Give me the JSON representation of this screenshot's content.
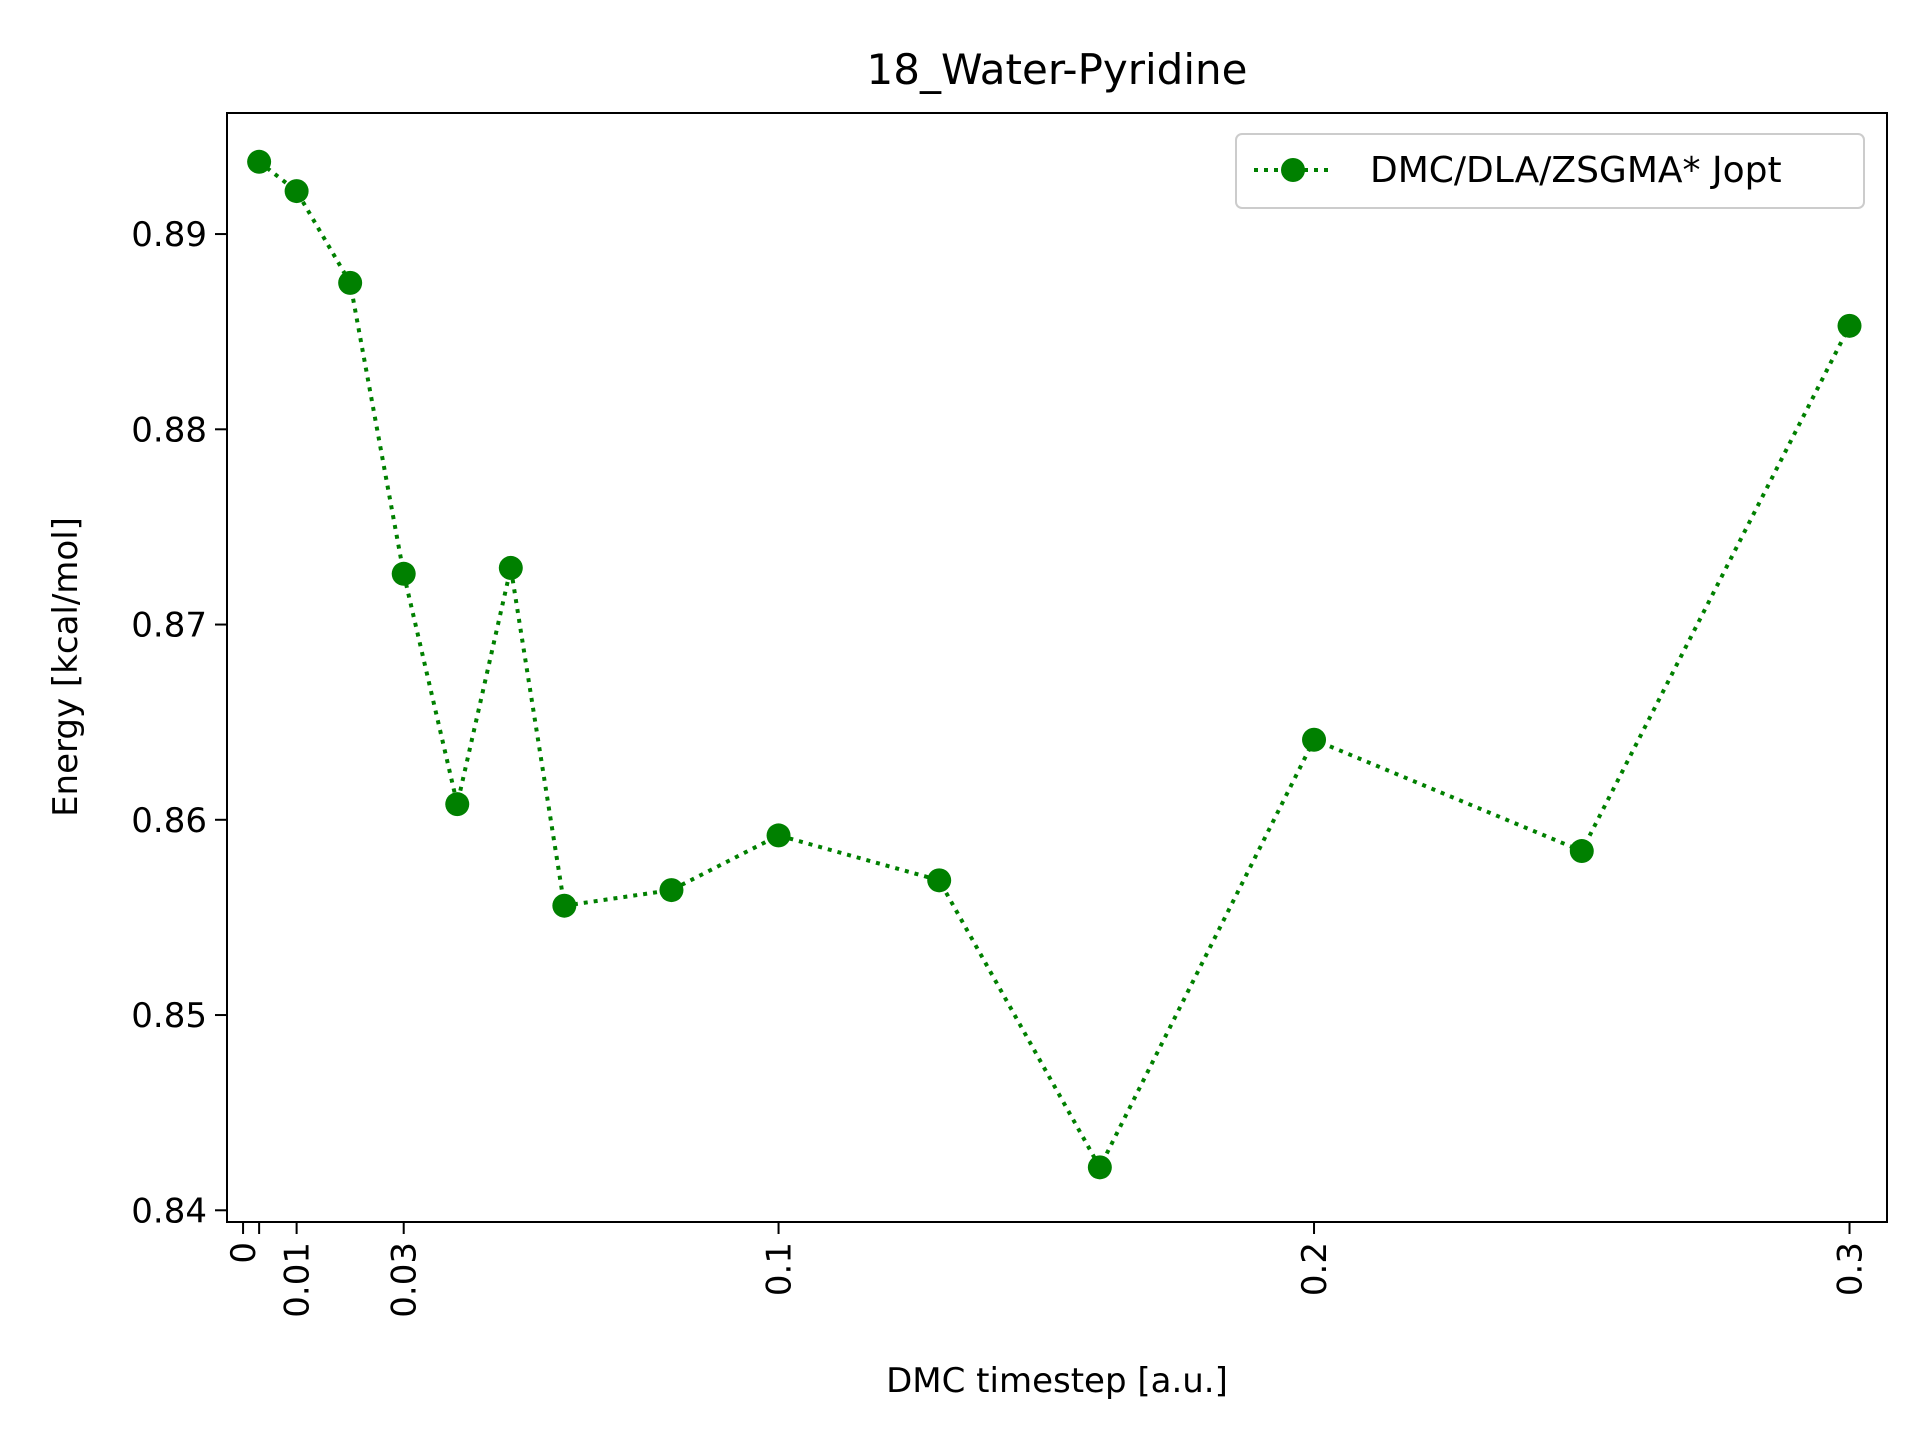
{
  "chart_data": {
    "type": "line",
    "title": "18_Water-Pyridine",
    "xlabel": "DMC timestep [a.u.]",
    "ylabel": "Energy [kcal/mol]",
    "xlim": [
      -0.003,
      0.307
    ],
    "ylim": [
      0.8394,
      0.8962
    ],
    "x_ticks": [
      {
        "value": 0,
        "label": "0"
      },
      {
        "value": 0.003,
        "label": ""
      },
      {
        "value": 0.01,
        "label": "0.01"
      },
      {
        "value": 0.03,
        "label": "0.03"
      },
      {
        "value": 0.1,
        "label": "0.1"
      },
      {
        "value": 0.2,
        "label": "0.2"
      },
      {
        "value": 0.3,
        "label": "0.3"
      }
    ],
    "y_ticks": [
      {
        "value": 0.84,
        "label": "0.84"
      },
      {
        "value": 0.85,
        "label": "0.85"
      },
      {
        "value": 0.86,
        "label": "0.86"
      },
      {
        "value": 0.87,
        "label": "0.87"
      },
      {
        "value": 0.88,
        "label": "0.88"
      },
      {
        "value": 0.89,
        "label": "0.89"
      }
    ],
    "grid": false,
    "legend_position": "top-right",
    "series": [
      {
        "name": "DMC/DLA/ZSGMA* Jopt",
        "color": "#008000",
        "line_style": "dotted",
        "marker": "circle",
        "x": [
          0.003,
          0.01,
          0.02,
          0.03,
          0.04,
          0.05,
          0.06,
          0.08,
          0.1,
          0.13,
          0.16,
          0.2,
          0.25,
          0.3
        ],
        "y": [
          0.8937,
          0.8922,
          0.8875,
          0.8726,
          0.8608,
          0.8729,
          0.8556,
          0.8564,
          0.8592,
          0.8569,
          0.8422,
          0.8641,
          0.8584,
          0.8853
        ]
      }
    ]
  }
}
